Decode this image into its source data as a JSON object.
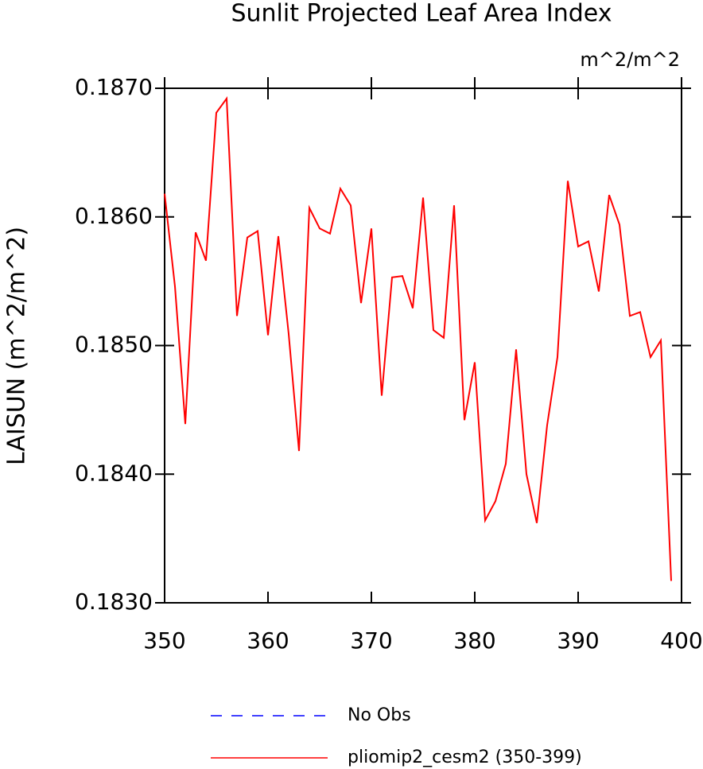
{
  "chart_data": {
    "type": "line",
    "title": "Sunlit Projected Leaf Area Index",
    "units": "m^2/m^2",
    "y_label": "LAISUN  (m^2/m^2)",
    "x": [
      350,
      351,
      352,
      353,
      354,
      355,
      356,
      357,
      358,
      359,
      360,
      361,
      362,
      363,
      364,
      365,
      366,
      367,
      368,
      369,
      370,
      371,
      372,
      373,
      374,
      375,
      376,
      377,
      378,
      379,
      380,
      381,
      382,
      383,
      384,
      385,
      386,
      387,
      388,
      389,
      390,
      391,
      392,
      393,
      394,
      395,
      396,
      397,
      398,
      399
    ],
    "series": [
      {
        "name": "No Obs",
        "color": "#0000ff",
        "dashed": true,
        "values": [
          null,
          null,
          null,
          null,
          null,
          null,
          null,
          null,
          null,
          null,
          null,
          null,
          null,
          null,
          null,
          null,
          null,
          null,
          null,
          null,
          null,
          null,
          null,
          null,
          null,
          null,
          null,
          null,
          null,
          null,
          null,
          null,
          null,
          null,
          null,
          null,
          null,
          null,
          null,
          null,
          null,
          null,
          null,
          null,
          null,
          null,
          null,
          null,
          null,
          null
        ]
      },
      {
        "name": "pliomip2_cesm2 (350-399)",
        "color": "#ff0000",
        "dashed": false,
        "values": [
          0.18618,
          0.18546,
          0.18439,
          0.18588,
          0.18566,
          0.18681,
          0.18692,
          0.18523,
          0.18584,
          0.18589,
          0.18508,
          0.18585,
          0.18509,
          0.18418,
          0.18607,
          0.18591,
          0.18587,
          0.18622,
          0.18609,
          0.18533,
          0.18591,
          0.18461,
          0.18553,
          0.18554,
          0.18529,
          0.18615,
          0.18512,
          0.18506,
          0.18609,
          0.18442,
          0.18487,
          0.18364,
          0.18379,
          0.18408,
          0.18497,
          0.184,
          0.18362,
          0.18438,
          0.18491,
          0.18628,
          0.18577,
          0.18581,
          0.18542,
          0.18617,
          0.18594,
          0.18523,
          0.18526,
          0.18491,
          0.18504,
          0.18317
        ]
      }
    ],
    "xlim": [
      350,
      400
    ],
    "xticks": [
      350,
      360,
      370,
      380,
      390,
      400
    ],
    "ylim": [
      0.183,
      0.187
    ],
    "yticks": [
      {
        "value": 0.183,
        "label": "0.1830"
      },
      {
        "value": 0.184,
        "label": "0.1840"
      },
      {
        "value": 0.185,
        "label": "0.1850"
      },
      {
        "value": 0.186,
        "label": "0.1860"
      },
      {
        "value": 0.187,
        "label": "0.1870"
      }
    ],
    "grid": false
  }
}
